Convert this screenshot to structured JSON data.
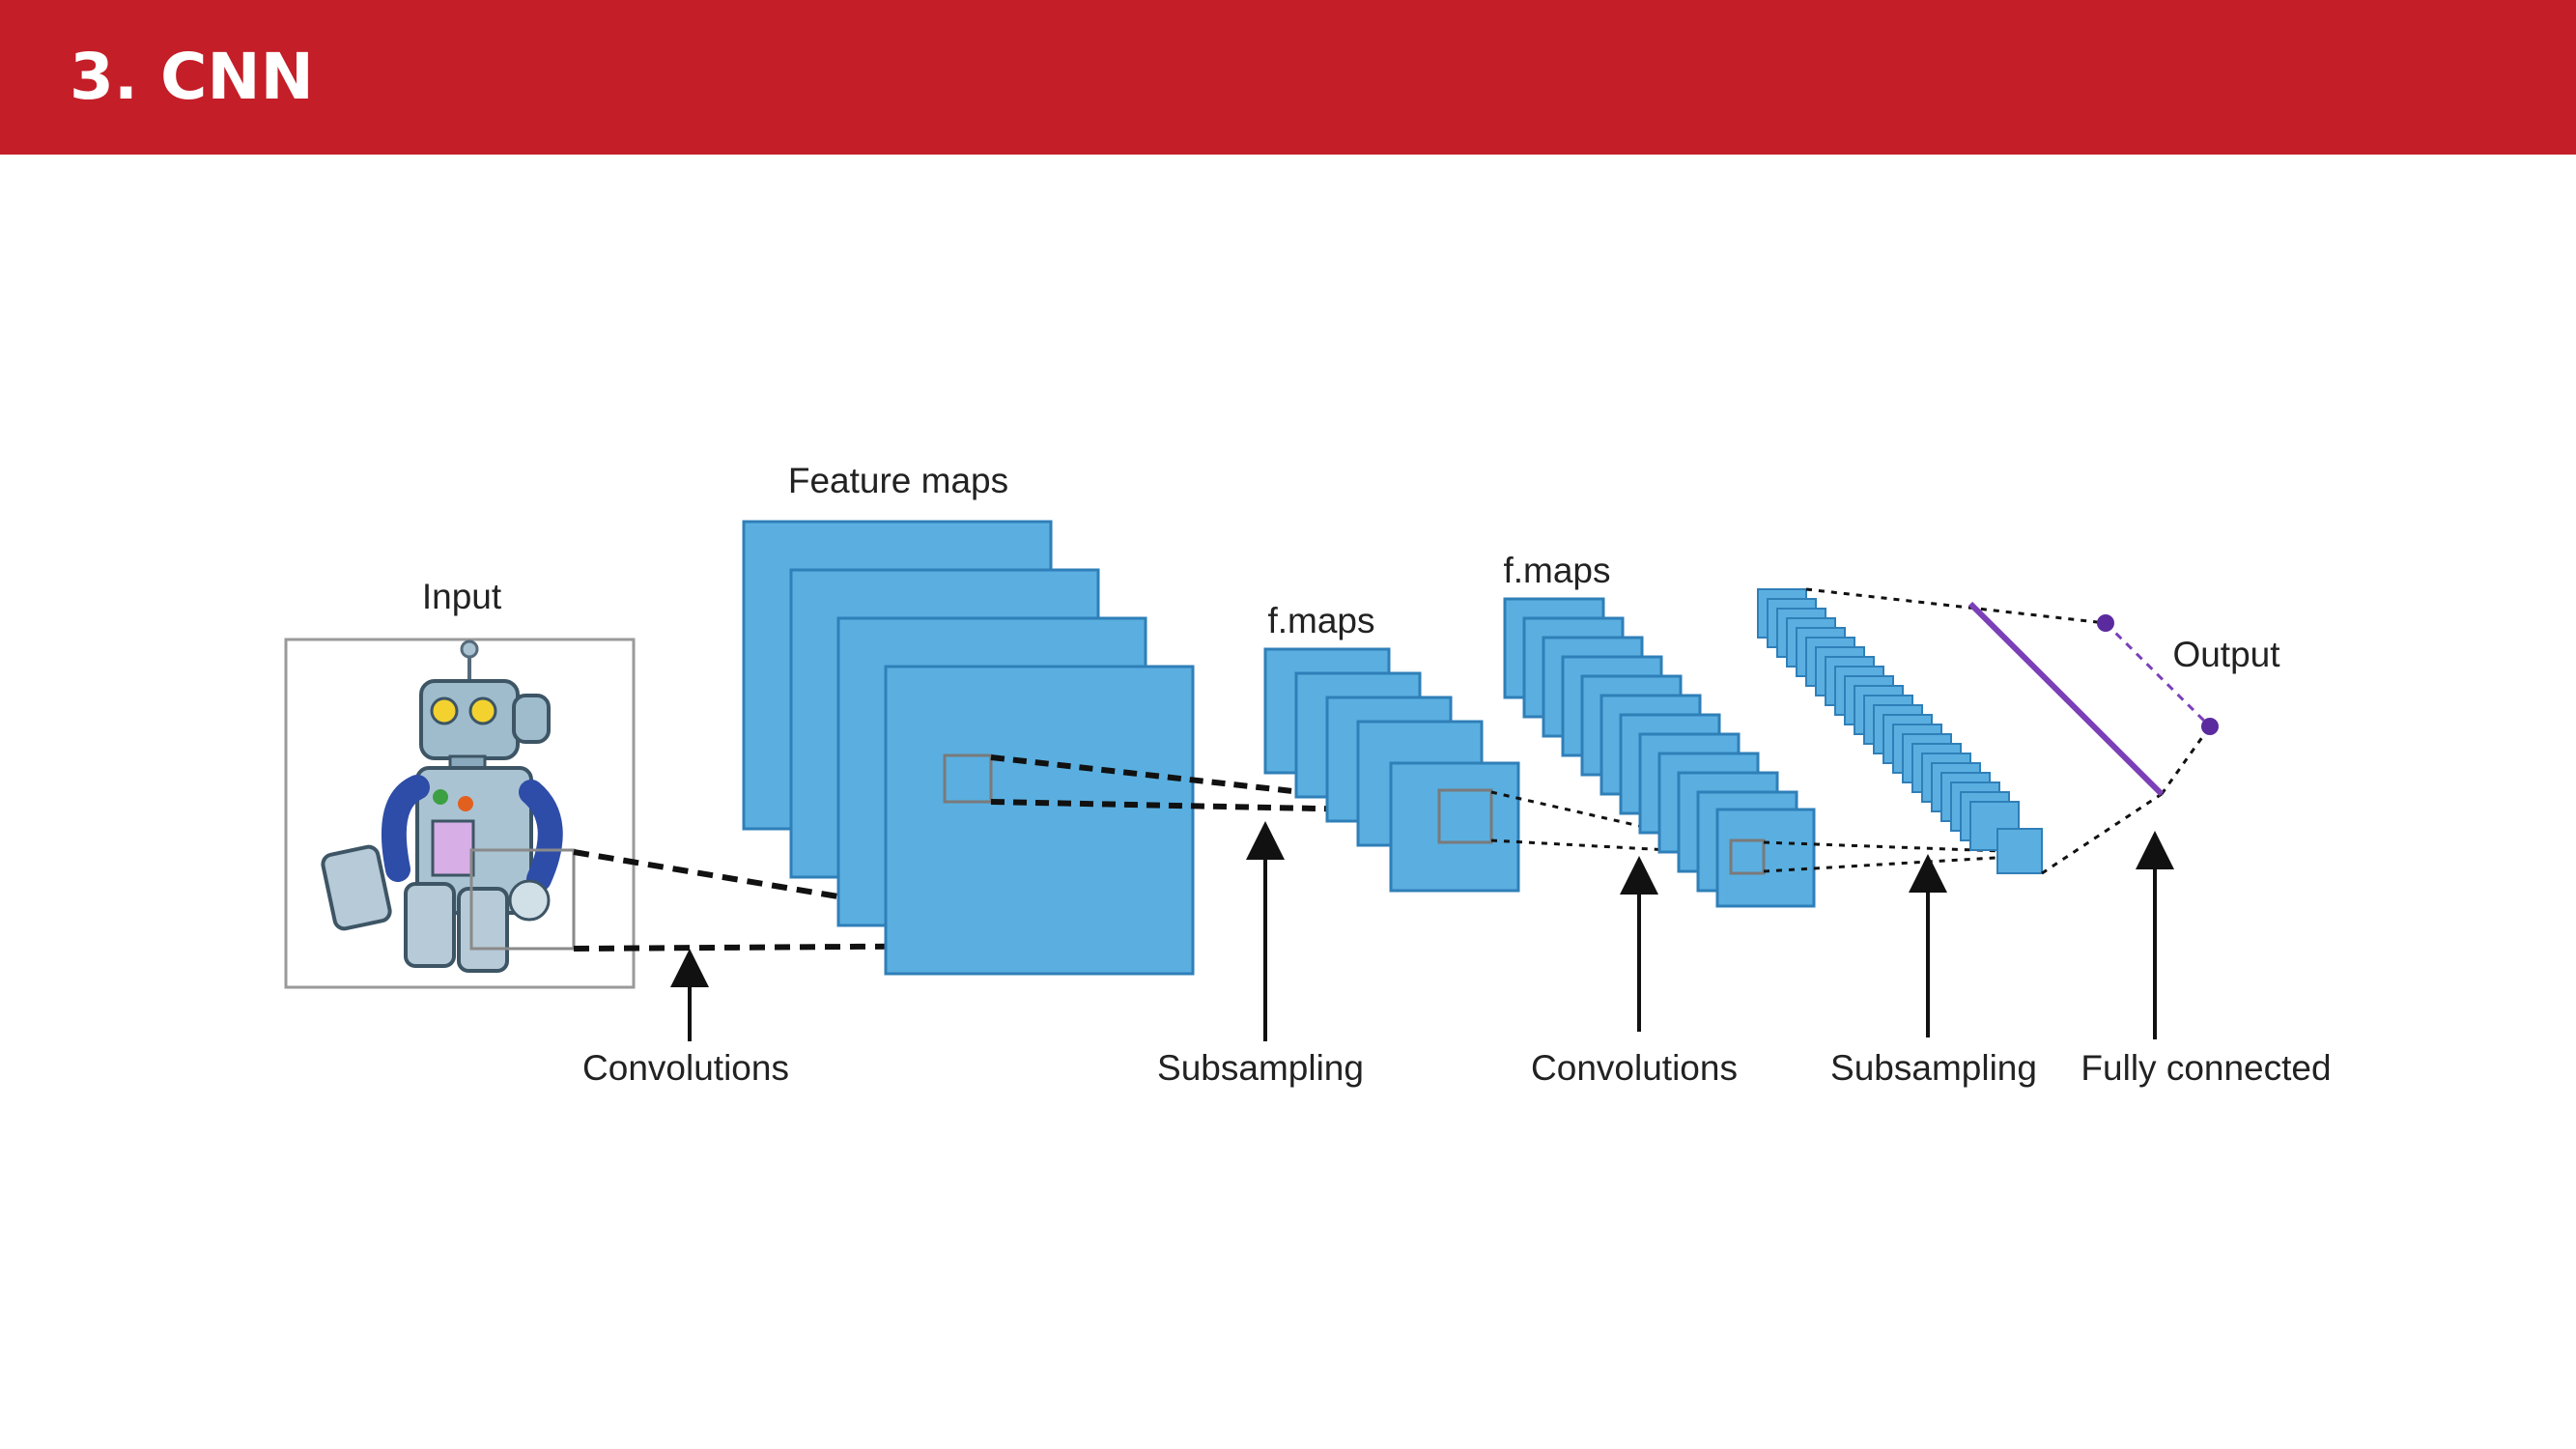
{
  "slide": {
    "title": "3. CNN"
  },
  "diagram": {
    "colors": {
      "map_fill": "#5aafe0",
      "map_stroke": "#2f7fb8",
      "output_line": "#7b3fb8",
      "header": "#c41e28"
    },
    "labels": {
      "input": "Input",
      "feature_maps": "Feature maps",
      "fmaps_1": "f.maps",
      "fmaps_2": "f.maps",
      "output": "Output"
    },
    "stages": [
      "Convolutions",
      "Subsampling",
      "Convolutions",
      "Subsampling",
      "Fully connected"
    ]
  }
}
